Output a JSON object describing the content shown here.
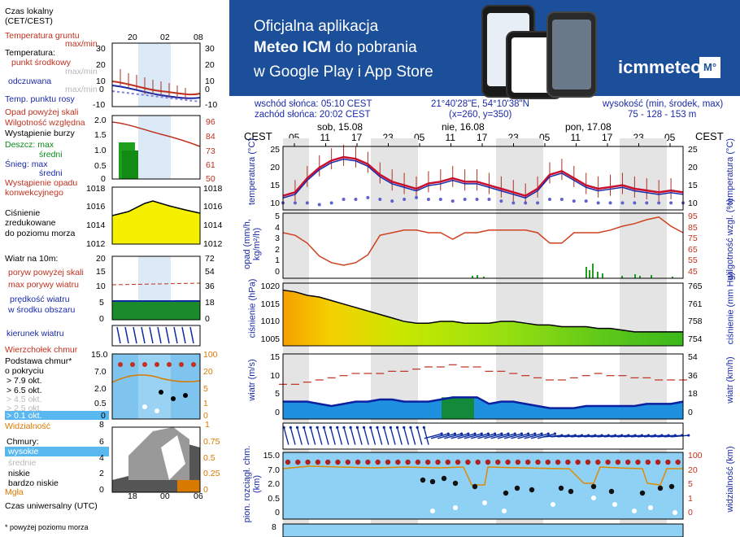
{
  "legend": {
    "local_time": "Czas lokalny",
    "local_time_tz": "(CET/CEST)",
    "time_ticks_top": [
      "20",
      "02",
      "08"
    ],
    "ground_temp": "Temperatura gruntu",
    "ground_temp_sub": "max/min",
    "temperature": "Temperatura:",
    "center_point": "punkt środkowy",
    "max_min": "max/min",
    "apparent": "odczuwana",
    "max_min2": "max/min",
    "dew_point": "Temp. punktu rosy",
    "precip_above": "Opad powyżej skali",
    "humidity": "Wilgotność względna",
    "storm": "Wystąpienie burzy",
    "rain_max": "Deszcz: max",
    "rain_avg": "średni",
    "snow_max": "Śnieg:    max",
    "snow_avg": "średni",
    "convective": "Wystąpienie opadu",
    "convective2": "konwekcyjnego",
    "pressure": "Ciśnienie",
    "pressure2": "zredukowane",
    "pressure3": "do poziomu morza",
    "wind_10m": "Wiatr na 10m:",
    "gust_above": "poryw powyżej skali",
    "max_gust": "max porywy wiatru",
    "wind_speed": "prędkość wiatru",
    "wind_area": "w środku obszaru",
    "wind_dir": "kierunek wiatru",
    "cloud_top": "Wierzchołek chmur",
    "cloud_base": "Podstawa chmur*",
    "cloud_base2": "o pokryciu",
    "okt79": "> 7.9 okt.",
    "okt65": "> 6.5 okt.",
    "okt45": "> 4.5 okt.",
    "okt25": "> 2.5 okt.",
    "okt01": "> 0.1 okt.",
    "visibility": "Widzialność",
    "clouds": "Chmury:",
    "high": "wysokie",
    "mid": "średnie",
    "low": "niskie",
    "very_low": "bardzo niskie",
    "fog": "Mgła",
    "utc": "Czas uniwersalny (UTC)",
    "utc_ticks": [
      "18",
      "00",
      "06"
    ],
    "footnote": "* powyżej poziomu morza"
  },
  "legend_axis": {
    "temp_left": [
      "30",
      "20",
      "10",
      "0",
      "-10"
    ],
    "temp_right": [
      "30",
      "20",
      "10",
      "0",
      "-10"
    ],
    "precip_left": [
      "2.0",
      "1.5",
      "1.0",
      "0.5",
      "0"
    ],
    "precip_right": [
      "96",
      "84",
      "73",
      "61",
      "50"
    ],
    "pres_left": [
      "1018",
      "1016",
      "1014",
      "1012"
    ],
    "pres_right": [
      "1018",
      "1016",
      "1014",
      "1012"
    ],
    "wind_left": [
      "20",
      "15",
      "10",
      "5",
      "0"
    ],
    "wind_right": [
      "72",
      "54",
      "36",
      "18",
      "0"
    ],
    "cloud_left": [
      "15.0",
      "7.0",
      "2.0",
      "0.5",
      "0"
    ],
    "cloud_right": [
      "100",
      "20",
      "5",
      "1",
      "0"
    ],
    "vis_left": "8",
    "vis_right": "1",
    "clouds_left": [
      "6",
      "4",
      "2",
      "0"
    ],
    "clouds_right": [
      "0.75",
      "0.5",
      "0.25",
      "0"
    ]
  },
  "banner": {
    "line1": "Oficjalna aplikacja",
    "line2_bold": "Meteo ICM",
    "line2_rest": " do pobrania",
    "line3": "w Google Play i App Store",
    "logo": "icmmeteo",
    "logo_badge": "M°"
  },
  "info": {
    "sunrise": "wschód słońca: 05:10 CEST",
    "sunset": "zachód słońca: 20:02 CEST",
    "coords": "21°40'28\"E, 54°10'38\"N",
    "grid": "(x=260,  y=350)",
    "elevation": "wysokość (min, środek, max)",
    "elevation_vals": "75 - 128 - 153 m"
  },
  "timeline": {
    "cest": "CEST",
    "days": [
      "sob, 15.08",
      "nie, 16.08",
      "pon, 17.08"
    ],
    "hours": [
      "05",
      "11",
      "17",
      "23",
      "05",
      "11",
      "17",
      "23",
      "05",
      "11",
      "17",
      "23",
      "05"
    ]
  },
  "panels": {
    "temp": {
      "left_label": "temperatura",
      "left_unit": "(°C)",
      "right_label": "temperatura",
      "right_unit": "(°C)",
      "ticks_left": [
        "25",
        "20",
        "15",
        "10"
      ],
      "ticks_right": [
        "25",
        "20",
        "15",
        "10"
      ]
    },
    "precip": {
      "left_label": "opad",
      "left_unit": "(mm/h, kg/m²/h)",
      "right_label": "wilgotność wzgl.",
      "right_unit": "(%)",
      "ticks_left": [
        "5",
        "4",
        "3",
        "2",
        "1",
        "0"
      ],
      "ticks_right": [
        "95",
        "85",
        "75",
        "65",
        "55",
        "45"
      ]
    },
    "pressure": {
      "left_label": "ciśnienie",
      "left_unit": "(hPa)",
      "right_label": "ciśnienie",
      "right_unit": "(mm Hg)",
      "ticks_left": [
        "1020",
        "1015",
        "1010",
        "1005"
      ],
      "ticks_right": [
        "765",
        "761",
        "758",
        "754"
      ]
    },
    "wind": {
      "left_label": "wiatr",
      "left_unit": "(m/s)",
      "right_label": "wiatr",
      "right_unit": "(km/h)",
      "ticks_left": [
        "15",
        "10",
        "5",
        "0"
      ],
      "ticks_right": [
        "54",
        "36",
        "18",
        "0"
      ]
    },
    "cloud": {
      "left_label": "pion. rozciągł. chm.",
      "left_unit": "(km)",
      "right_label": "widzialność",
      "right_unit": "(km)",
      "ticks_left": [
        "15.0",
        "7.0",
        "2.0",
        "0.5",
        "0"
      ],
      "ticks_right": [
        "100",
        "20",
        "5",
        "1",
        "0"
      ]
    },
    "clouds2": {
      "tick": "8"
    }
  },
  "chart_data": [
    {
      "type": "line",
      "title": "temperatura",
      "ylabel": "(°C)",
      "ylim": [
        10,
        28
      ],
      "series": [
        {
          "values": [
            14,
            15,
            19,
            22,
            24,
            25,
            24.5,
            23,
            20,
            18,
            17,
            16,
            17.5,
            18,
            19,
            18,
            18,
            17,
            16,
            15,
            14,
            16,
            20,
            21,
            19,
            17,
            16,
            16.5,
            17,
            16,
            15.5,
            15,
            15.5,
            15
          ]
        },
        {
          "values": [
            12,
            12,
            12,
            11.5,
            12,
            13,
            13,
            13.5,
            13,
            12.5,
            13,
            13.5,
            13,
            13,
            12.5,
            13,
            13,
            13,
            12.5,
            12,
            12,
            12,
            13,
            13,
            12.5,
            12.5,
            12,
            12,
            12,
            12,
            12,
            12,
            12,
            12
          ]
        }
      ]
    },
    {
      "type": "line",
      "title": "wilgotność wzgl.",
      "ylabel": "(%)",
      "ylim": [
        45,
        95
      ],
      "series": [
        {
          "values": [
            80,
            78,
            72,
            62,
            57,
            55,
            57,
            63,
            78,
            80,
            82,
            82,
            80,
            80,
            75,
            80,
            80,
            82,
            82,
            82,
            82,
            80,
            72,
            72,
            80,
            80,
            80,
            82,
            85,
            87,
            90,
            92,
            85,
            80
          ]
        }
      ]
    },
    {
      "type": "area",
      "title": "ciśnienie",
      "ylabel": "(hPa)",
      "ylim": [
        1003,
        1021
      ],
      "series": [
        {
          "values": [
            1019,
            1018.5,
            1017.5,
            1017,
            1016,
            1015,
            1014,
            1013,
            1012,
            1011,
            1010,
            1009.5,
            1009.5,
            1010,
            1010,
            1009.5,
            1009.5,
            1009.5,
            1010,
            1010,
            1009.5,
            1009,
            1009,
            1008.5,
            1008.5,
            1008.5,
            1008,
            1008,
            1007.5,
            1007,
            1007,
            1007,
            1007,
            1007
          ]
        }
      ]
    },
    {
      "type": "line",
      "title": "wiatr",
      "ylabel": "(m/s)",
      "ylim": [
        0,
        15
      ],
      "series": [
        {
          "values": [
            4,
            4,
            4,
            3.5,
            3,
            3.5,
            4,
            4,
            4.5,
            4.5,
            4,
            4,
            4,
            4.5,
            5,
            5,
            5,
            3.5,
            4,
            4,
            3.5,
            3,
            2.5,
            2.5,
            2.5,
            3,
            3,
            3,
            3,
            3,
            3.5,
            3.5,
            3.5,
            4
          ]
        },
        {
          "values": [
            8,
            8,
            8.5,
            9,
            9.5,
            10,
            10.5,
            10.5,
            10.5,
            11,
            11,
            11.5,
            12,
            12,
            12.5,
            12,
            12,
            11,
            11,
            10.5,
            10,
            9.5,
            9,
            9,
            9.5,
            10,
            10.5,
            10,
            10,
            9.5,
            9.5,
            9,
            9,
            9
          ]
        }
      ]
    }
  ]
}
